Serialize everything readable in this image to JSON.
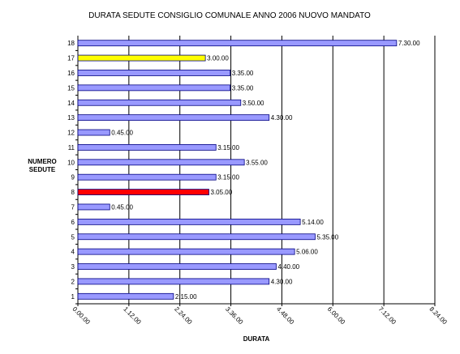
{
  "chart_data": {
    "type": "bar",
    "orientation": "horizontal",
    "title": "DURATA SEDUTE CONSIGLIO COMUNALE ANNO 2006 NUOVO MANDATO",
    "xlabel": "DURATA",
    "ylabel_line1": "NUMERO",
    "ylabel_line2": "SEDUTE",
    "categories": [
      "1",
      "2",
      "3",
      "4",
      "5",
      "6",
      "7",
      "8",
      "9",
      "10",
      "11",
      "12",
      "13",
      "14",
      "15",
      "16",
      "17",
      "18"
    ],
    "values_minutes": [
      135,
      270,
      280,
      306,
      335,
      314,
      45,
      185,
      195,
      235,
      195,
      45,
      270,
      230,
      215,
      215,
      180,
      450
    ],
    "value_labels": [
      "2.15.00",
      "4.30.00",
      "4.40.00",
      "5.06.00",
      "5.35.00",
      "5.14.00",
      "0.45.00",
      "3.05.00",
      "3.15.00",
      "3.55.00",
      "3.15.00",
      "0.45.00",
      "4.30.00",
      "3.50.00",
      "3.35.00",
      "3.35.00",
      "3.00.00",
      "7.30.00"
    ],
    "x_ticks": [
      "0.00.00",
      "1.12.00",
      "2.24.00",
      "3.36.00",
      "4.48.00",
      "6.00.00",
      "7.12.00",
      "8.24.00"
    ],
    "xlim_minutes": [
      0,
      504
    ],
    "grid": "vertical major gridlines",
    "colors": {
      "default_bar": "#9999ff",
      "highlight_17": "#ffff00",
      "highlight_8": "#ff0000",
      "bar_border": "#000080",
      "gridline": "#000000"
    }
  }
}
